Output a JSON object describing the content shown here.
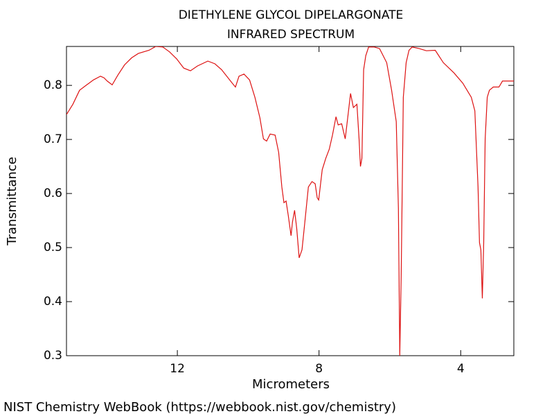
{
  "chart_data": {
    "type": "line",
    "title": "DIETHYLENE GLYCOL DIPELARGONATE",
    "subtitle": "INFRARED SPECTRUM",
    "x_label": "Micrometers",
    "y_label": "Transmittance",
    "source": "NIST Chemistry WebBook (https://webbook.nist.gov/chemistry)",
    "xlim": [
      15.13,
      2.5
    ],
    "xticks": [
      12,
      8,
      4
    ],
    "ylim": [
      0.3,
      0.872
    ],
    "yticks": [
      {
        "value": 0.3,
        "label": "0.3"
      },
      {
        "value": 0.4,
        "label": "0.4"
      },
      {
        "value": 0.5,
        "label": "0.5"
      },
      {
        "value": 0.6,
        "label": "0.6"
      },
      {
        "value": 0.7,
        "label": "0.7"
      },
      {
        "value": 0.8,
        "label": "0.8"
      }
    ],
    "series": [
      {
        "color": "#dd1111",
        "x": [
          15.13,
          14.95,
          14.76,
          14.56,
          14.37,
          14.17,
          14.07,
          13.98,
          13.84,
          13.68,
          13.49,
          13.29,
          13.1,
          12.8,
          12.61,
          12.41,
          12.22,
          12.02,
          11.82,
          11.63,
          11.43,
          11.14,
          10.94,
          10.75,
          10.45,
          10.36,
          10.26,
          10.12,
          9.96,
          9.81,
          9.67,
          9.57,
          9.48,
          9.38,
          9.24,
          9.14,
          9.05,
          8.99,
          8.93,
          8.87,
          8.79,
          8.75,
          8.69,
          8.63,
          8.56,
          8.48,
          8.4,
          8.3,
          8.2,
          8.11,
          8.05,
          8.01,
          7.91,
          7.81,
          7.71,
          7.62,
          7.52,
          7.46,
          7.36,
          7.26,
          7.19,
          7.11,
          7.03,
          6.93,
          6.87,
          6.83,
          6.79,
          6.74,
          6.68,
          6.6,
          6.44,
          6.29,
          6.09,
          5.95,
          5.82,
          5.76,
          5.72,
          5.68,
          5.62,
          5.54,
          5.46,
          5.37,
          5.17,
          4.97,
          4.72,
          4.49,
          4.19,
          3.94,
          3.7,
          3.6,
          3.51,
          3.47,
          3.43,
          3.39,
          3.35,
          3.31,
          3.25,
          3.19,
          3.08,
          2.92,
          2.82,
          2.5
        ],
        "values": [
          0.746,
          0.765,
          0.791,
          0.801,
          0.81,
          0.817,
          0.814,
          0.808,
          0.801,
          0.819,
          0.838,
          0.851,
          0.859,
          0.865,
          0.872,
          0.871,
          0.862,
          0.849,
          0.832,
          0.827,
          0.836,
          0.845,
          0.84,
          0.829,
          0.804,
          0.797,
          0.817,
          0.821,
          0.81,
          0.778,
          0.74,
          0.701,
          0.697,
          0.71,
          0.708,
          0.676,
          0.612,
          0.583,
          0.586,
          0.56,
          0.522,
          0.547,
          0.569,
          0.535,
          0.481,
          0.496,
          0.547,
          0.612,
          0.622,
          0.618,
          0.592,
          0.588,
          0.644,
          0.665,
          0.682,
          0.708,
          0.742,
          0.727,
          0.729,
          0.701,
          0.74,
          0.785,
          0.759,
          0.765,
          0.701,
          0.65,
          0.665,
          0.829,
          0.855,
          0.871,
          0.871,
          0.868,
          0.842,
          0.791,
          0.733,
          0.573,
          0.3,
          0.445,
          0.778,
          0.842,
          0.865,
          0.871,
          0.868,
          0.864,
          0.865,
          0.842,
          0.823,
          0.804,
          0.778,
          0.753,
          0.612,
          0.509,
          0.496,
          0.406,
          0.509,
          0.701,
          0.778,
          0.791,
          0.797,
          0.797,
          0.808,
          0.808
        ]
      }
    ]
  }
}
